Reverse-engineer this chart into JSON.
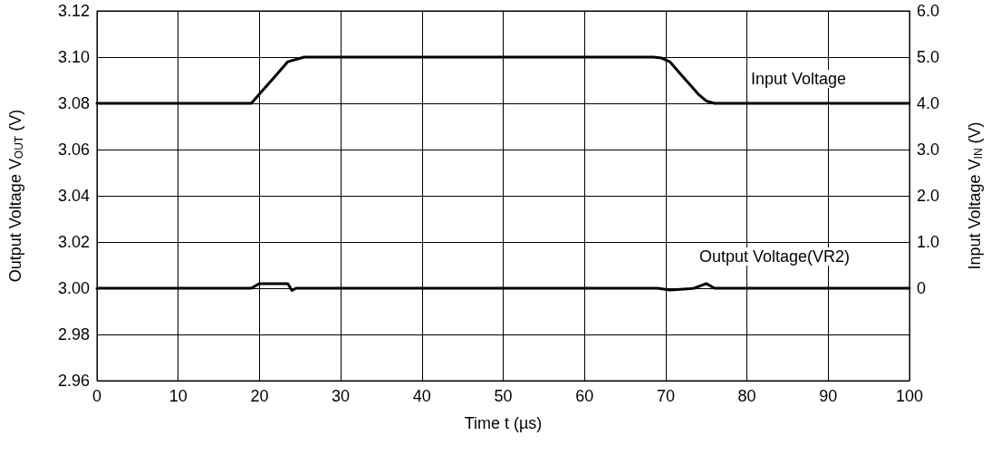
{
  "chart_data": {
    "type": "line",
    "xlabel": "Time t (µs)",
    "ylabel": "Output Voltage V$_{OUT}$ (V)",
    "y2label": "Input Voltage V$_{IN}$ (V)",
    "xlim": [
      0,
      100
    ],
    "xticks": [
      0,
      10,
      20,
      30,
      40,
      50,
      60,
      70,
      80,
      90,
      100
    ],
    "ylim": [
      2.96,
      3.12
    ],
    "yticks": [
      {
        "value": 2.96,
        "label": "2.96"
      },
      {
        "value": 2.98,
        "label": "2.98"
      },
      {
        "value": 3.0,
        "label": "3.00"
      },
      {
        "value": 3.02,
        "label": "3.02"
      },
      {
        "value": 3.04,
        "label": "3.04"
      },
      {
        "value": 3.06,
        "label": "3.06"
      },
      {
        "value": 3.08,
        "label": "3.08"
      },
      {
        "value": 3.1,
        "label": "3.10"
      },
      {
        "value": 3.12,
        "label": "3.12"
      }
    ],
    "y2lim": [
      -2,
      6
    ],
    "y2ticks": [
      0,
      {
        "value": 1,
        "label": "1.0"
      },
      {
        "value": 2,
        "label": "2.0"
      },
      {
        "value": 3,
        "label": "3.0"
      },
      {
        "value": 4,
        "label": "4.0"
      },
      {
        "value": 5,
        "label": "5.0"
      },
      {
        "value": 6,
        "label": "6.0"
      }
    ],
    "grid": true,
    "marker": "none",
    "line_style": "solid",
    "series": [
      {
        "color": "#000000",
        "axis": "y2",
        "x": [
          0,
          19,
          20,
          22,
          23.5,
          25.5,
          68.5,
          69.5,
          70.5,
          72,
          74,
          75,
          76,
          100
        ],
        "values": [
          4,
          4,
          4.2,
          4.6,
          4.9,
          5,
          5,
          4.98,
          4.9,
          4.6,
          4.2,
          4.05,
          4,
          4
        ]
      },
      {
        "color": "#000000",
        "axis": "y",
        "x": [
          0,
          19,
          20,
          23.5,
          24,
          24.5,
          69,
          70.5,
          73,
          73.5,
          75,
          76,
          100
        ],
        "values": [
          3.0,
          3.0,
          3.002,
          3.002,
          2.999,
          3.0,
          3.0,
          2.9992,
          2.9998,
          3.0,
          3.002,
          3.0,
          3.0
        ]
      }
    ],
    "annotations": [
      "Input Voltage",
      "Output Voltage(VR2)"
    ]
  }
}
